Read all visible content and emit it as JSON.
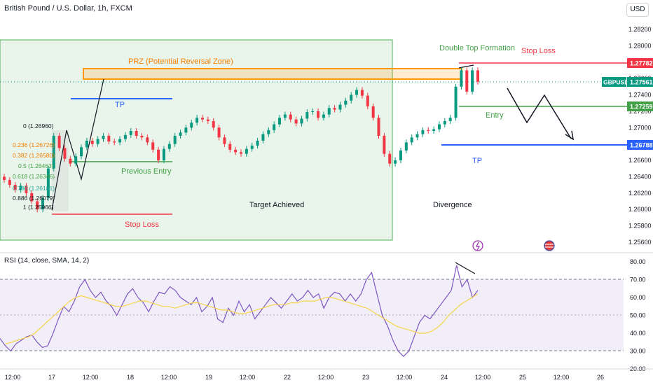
{
  "header": {
    "title": "British Pound / U.S. Dollar, 1h, FXCM",
    "currency": "USD"
  },
  "rsi_label": "RSI (14, close, SMA, 14, 2)",
  "annotations": {
    "prz": "PRZ (Potential Reversal Zone)",
    "double_top": "Double Top Formation",
    "stop_loss_top": "Stop Loss",
    "tp_left": "TP",
    "previous_entry": "Previous Entry",
    "stop_loss_left": "Stop Loss",
    "target_achieved": "Target Achieved",
    "divergence": "Divergence",
    "entry": "Entry",
    "tp_right": "TP"
  },
  "fib_labels": [
    "0 (1.26960)",
    "0.236 (1.26726)",
    "0.382 (1.26580)",
    "0.5 (1.26463)",
    "0.618 (1.26346)",
    "0.786 (1.26181)",
    "0.886 (1.26079)",
    "1 (1.25966)"
  ],
  "price_badges": {
    "stop_loss": "1.27782",
    "symbol": "GBPUSD",
    "last": "1.27561",
    "entry": "1.27259",
    "tp": "1.26788"
  },
  "colors": {
    "up": "#089981",
    "down": "#f23645",
    "stop": "#f23645",
    "entry": "#43a047",
    "tp": "#2962ff",
    "zone_border": "#ff9800",
    "zone_fill": "rgba(255,152,0,0.18)",
    "green_box": "rgba(76,175,80,0.12)",
    "rsi_line": "#7e57c2",
    "rsi_ma": "#f5d547",
    "rsi_band": "rgba(126,87,194,0.10)"
  },
  "chart_data": [
    {
      "type": "candlestick",
      "title": "British Pound / U.S. Dollar, 1h, FXCM",
      "x_tick_labels": [
        "12:00",
        "17",
        "12:00",
        "18",
        "12:00",
        "19",
        "12:00",
        "22",
        "12:00",
        "23",
        "12:00",
        "24",
        "12:00",
        "25",
        "12:00",
        "26"
      ],
      "y_tick_labels": [
        "1.28200",
        "1.28000",
        "1.27800",
        "1.27600",
        "1.27400",
        "1.27200",
        "1.27000",
        "1.26800",
        "1.26600",
        "1.26400",
        "1.26200",
        "1.26000",
        "1.25800",
        "1.25600"
      ],
      "ylim": [
        1.2556,
        1.2832
      ],
      "series": [
        {
          "values": [
            1.2636,
            1.263,
            1.2624,
            1.2629,
            1.262,
            1.261,
            1.26,
            1.2614,
            1.265,
            1.269,
            1.2675,
            1.2662,
            1.2656,
            1.2665,
            1.2676,
            1.2684,
            1.268,
            1.2686,
            1.269,
            1.2683,
            1.2682,
            1.2686,
            1.2691,
            1.2696,
            1.269,
            1.2688,
            1.2682,
            1.2673,
            1.266,
            1.2674,
            1.268,
            1.269,
            1.2694,
            1.27,
            1.2706,
            1.2712,
            1.271,
            1.2708,
            1.27,
            1.2688,
            1.268,
            1.2673,
            1.267,
            1.2668,
            1.2674,
            1.2678,
            1.2684,
            1.2692,
            1.2697,
            1.2704,
            1.2712,
            1.2716,
            1.271,
            1.2705,
            1.2711,
            1.2719,
            1.272,
            1.2712,
            1.2716,
            1.2724,
            1.2722,
            1.2728,
            1.2733,
            1.274,
            1.2746,
            1.2739,
            1.2726,
            1.2712,
            1.269,
            1.2668,
            1.2656,
            1.266,
            1.2672,
            1.2682,
            1.2688,
            1.2692,
            1.2697,
            1.2696,
            1.2698,
            1.2704,
            1.2708,
            1.2712,
            1.275,
            1.277,
            1.2744,
            1.277,
            1.2756
          ]
        }
      ]
    },
    {
      "type": "line",
      "title": "RSI (14, close, SMA, 14, 2)",
      "y_tick_labels": [
        "80.00",
        "70.00",
        "60.00",
        "50.00",
        "40.00",
        "30.00",
        "20.00"
      ],
      "ylim": [
        20,
        82
      ],
      "series": [
        {
          "values": [
            37,
            33,
            30,
            34,
            36,
            38,
            39,
            35,
            32,
            33,
            40,
            48,
            55,
            52,
            58,
            66,
            70,
            64,
            60,
            63,
            58,
            55,
            50,
            56,
            62,
            65,
            60,
            57,
            52,
            58,
            63,
            62,
            66,
            64,
            60,
            58,
            56,
            60,
            52,
            55,
            60,
            48,
            46,
            54,
            50,
            58,
            52,
            56,
            48,
            52,
            56,
            60,
            57,
            54,
            58,
            62,
            58,
            60,
            64,
            60,
            62,
            54,
            60,
            63,
            62,
            58,
            62,
            58,
            62,
            70,
            74,
            62,
            50,
            44,
            36,
            30,
            27,
            30,
            38,
            46,
            50,
            48,
            52,
            56,
            60,
            64,
            78,
            66,
            70,
            60,
            64
          ]
        },
        {
          "values": [
            34,
            35,
            36,
            37,
            38,
            40,
            43,
            46,
            49,
            52,
            55,
            58,
            60,
            61,
            60,
            59,
            58,
            57,
            56,
            55,
            55,
            56,
            57,
            58,
            58,
            57,
            56,
            55,
            55,
            54,
            55,
            56,
            57,
            57,
            56,
            55,
            54,
            53,
            53,
            52,
            51,
            51,
            52,
            53,
            54,
            55,
            56,
            56,
            56,
            57,
            57,
            58,
            58,
            58,
            59,
            60,
            60,
            59,
            58,
            57,
            56,
            55,
            54,
            52,
            50,
            48,
            46,
            44,
            43,
            42,
            41,
            40,
            40,
            41,
            43,
            46,
            50,
            53,
            56,
            58,
            60,
            62
          ]
        }
      ],
      "reference_lines": [
        70,
        50,
        30
      ]
    }
  ]
}
